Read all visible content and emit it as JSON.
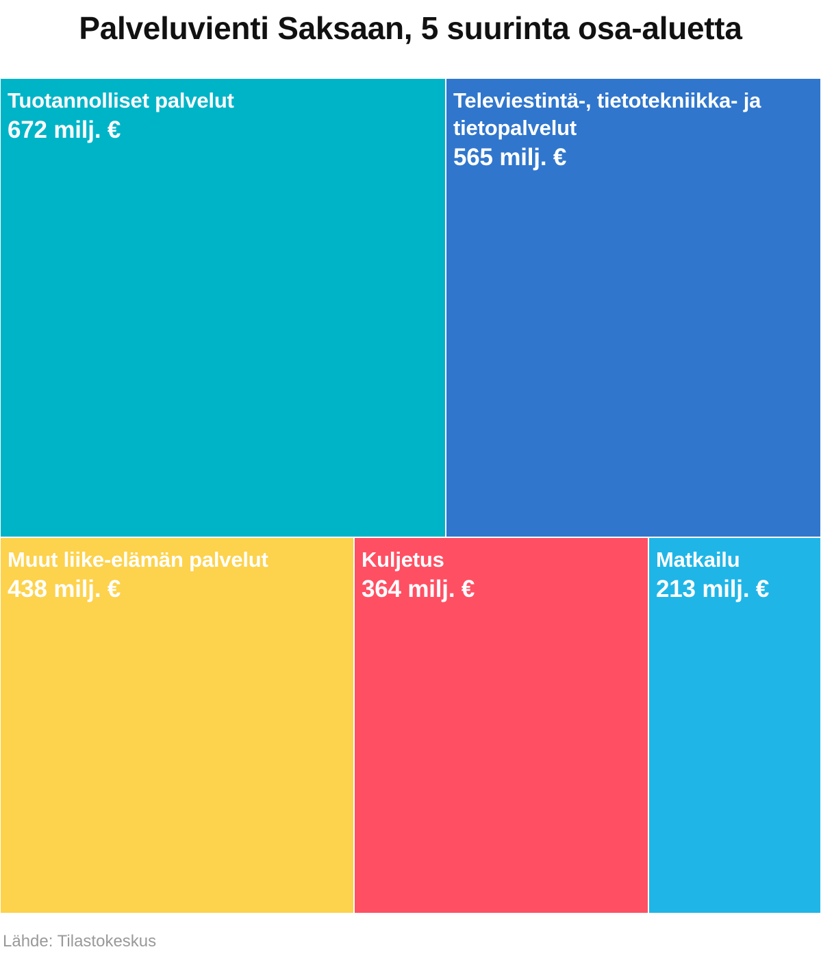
{
  "header": {
    "title": "Palveluvienti Saksaan, 5 suurinta osa-aluetta"
  },
  "footer": {
    "source": "Lähde: Tilastokeskus"
  },
  "chart_data": {
    "type": "treemap",
    "title": "Palveluvienti Saksaan, 5 suurinta osa-aluetta",
    "unit": "milj. €",
    "items": [
      {
        "name": "Tuotannolliset palvelut",
        "value": 672,
        "value_label": "672 milj. €",
        "color": "#00b4c8"
      },
      {
        "name": "Televiestintä-, tietotekniikka- ja tietopalvelut",
        "value": 565,
        "value_label": "565 milj. €",
        "color": "#3076cc"
      },
      {
        "name": "Muut liike-elämän palvelut",
        "value": 438,
        "value_label": "438 milj. €",
        "color": "#fdd24c"
      },
      {
        "name": "Kuljetus",
        "value": 364,
        "value_label": "364 milj. €",
        "color": "#ff4f63"
      },
      {
        "name": "Matkailu",
        "value": 213,
        "value_label": "213 milj. €",
        "color": "#20b5e7"
      }
    ]
  }
}
